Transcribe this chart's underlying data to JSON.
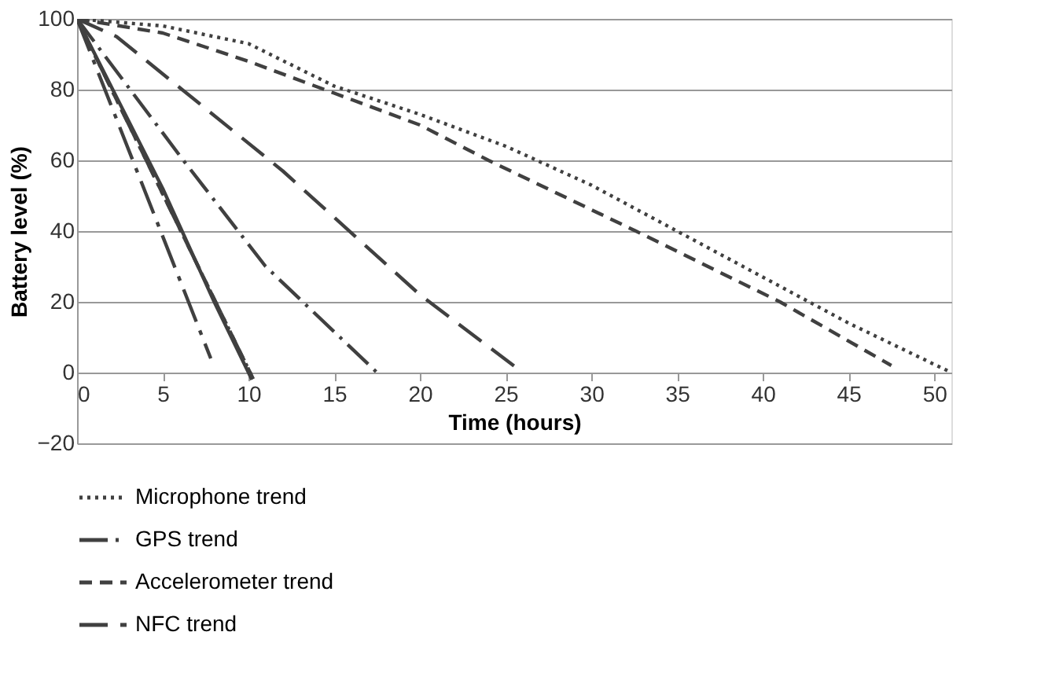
{
  "chart_data": {
    "type": "line",
    "xlabel": "Time (hours)",
    "ylabel": "Battery level (%)",
    "xlim": [
      0,
      51
    ],
    "xticks": [
      0,
      5,
      10,
      15,
      20,
      25,
      30,
      35,
      40,
      45,
      50
    ],
    "ylim": [
      -20,
      100
    ],
    "yticks": [
      -20,
      0,
      20,
      40,
      60,
      80,
      100
    ],
    "grid": "y",
    "legend": "bottom",
    "marker": "none",
    "series": [
      {
        "name": "Microphone trend",
        "color": "#404040",
        "line_style": "dotted",
        "x": [
          0,
          5,
          10,
          15,
          20,
          25,
          30,
          35,
          40,
          45,
          51
        ],
        "values": [
          100,
          98,
          93,
          81,
          73,
          64,
          53,
          40,
          27,
          14,
          0
        ]
      },
      {
        "name": "GPS trend",
        "color": "#404040",
        "line_style": "dashdot",
        "x": [
          0,
          6.2,
          11,
          17.5
        ],
        "values": [
          100,
          60,
          30,
          0
        ]
      },
      {
        "name": "Accelerometer trend",
        "color": "#404040",
        "line_style": "dashed",
        "x": [
          0,
          5,
          10,
          15,
          20,
          24,
          32.6,
          41,
          47.5
        ],
        "values": [
          100,
          96,
          88,
          79,
          70,
          60,
          40,
          20,
          2
        ]
      },
      {
        "name": "NFC trend",
        "color": "#404040",
        "line_style": "longdash",
        "x": [
          0,
          2.3,
          12,
          20,
          26
        ],
        "values": [
          100,
          95,
          57,
          22,
          0
        ]
      },
      {
        "color": "#404040",
        "line_style": "longdashdot",
        "x": [
          0,
          7.8
        ],
        "values": [
          100,
          4
        ]
      },
      {
        "color": "#404040",
        "line_style": "solid",
        "x": [
          0,
          5,
          8,
          10.2
        ],
        "values": [
          100,
          52,
          20,
          -2
        ]
      },
      {
        "color": "#404040",
        "line_style": "dashed",
        "x": [
          0,
          10.4
        ],
        "values": [
          100,
          -3
        ]
      },
      {
        "color": "#404040",
        "line_style": "dashdotdot",
        "x": [
          0,
          10.3
        ],
        "values": [
          100,
          -2
        ]
      }
    ]
  }
}
